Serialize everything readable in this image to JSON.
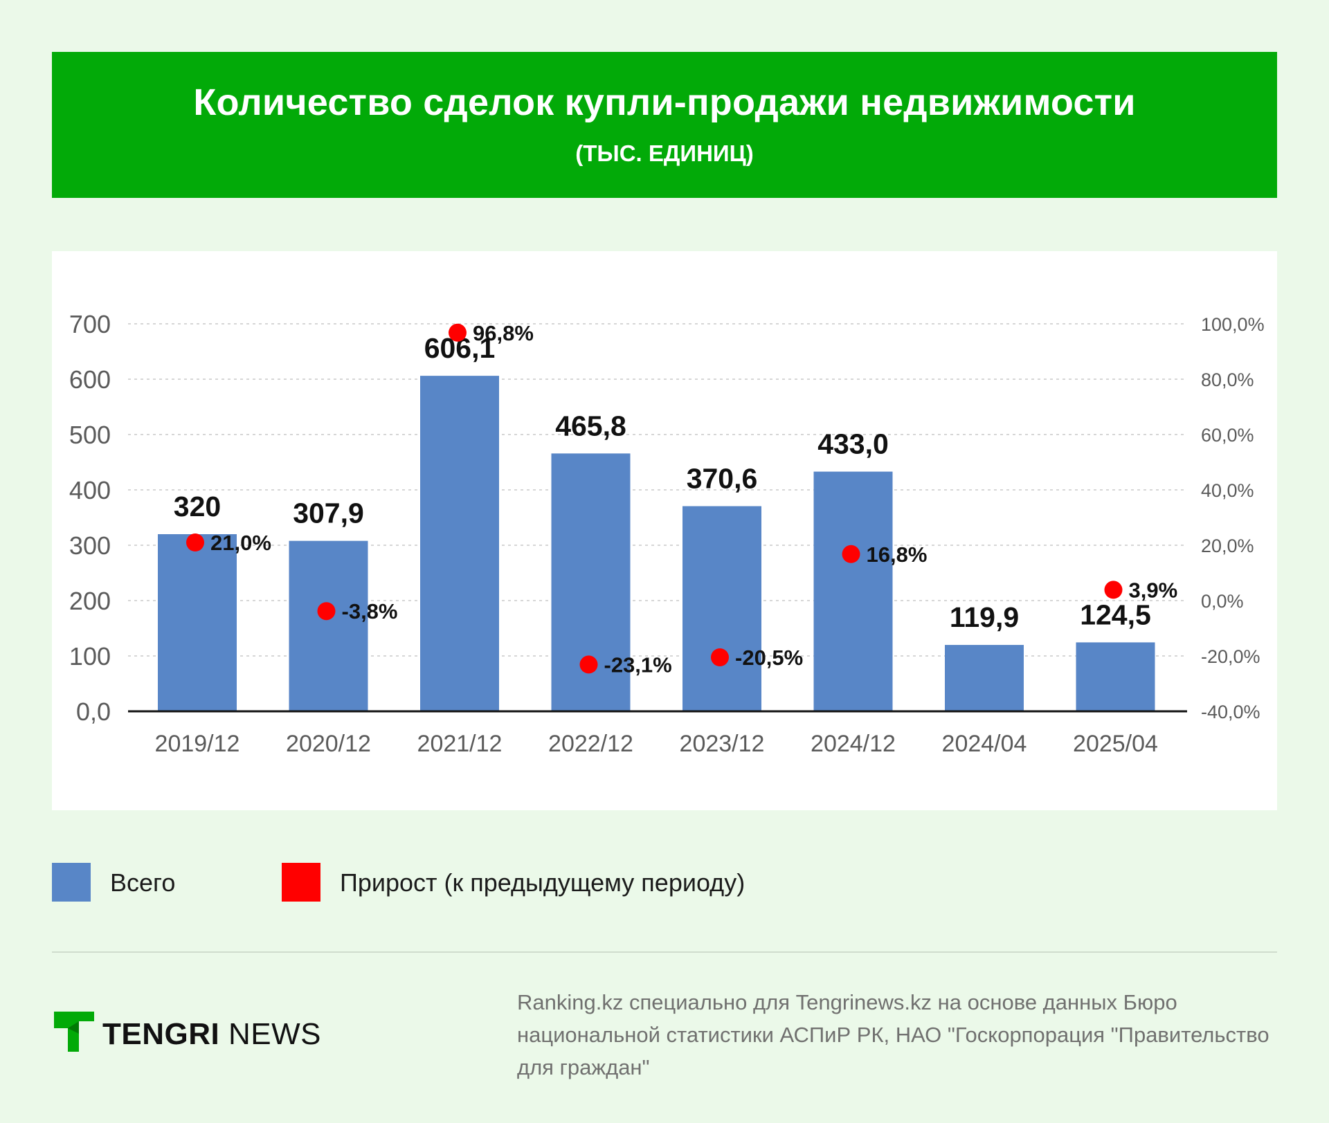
{
  "header": {
    "title": "Количество сделок купли-продажи недвижимости",
    "subtitle": "(ТЫС. ЕДИНИЦ)"
  },
  "chart_data": {
    "type": "bar",
    "categories": [
      "2019/12",
      "2020/12",
      "2021/12",
      "2022/12",
      "2023/12",
      "2024/12",
      "2024/04",
      "2025/04"
    ],
    "series": [
      {
        "name": "Всего",
        "type": "bar",
        "axis": "left",
        "values": [
          320,
          307.9,
          606.1,
          465.8,
          370.6,
          433.0,
          119.9,
          124.5
        ],
        "labels": [
          "320",
          "307,9",
          "606,1",
          "465,8",
          "370,6",
          "433,0",
          "119,9",
          "124,5"
        ],
        "color": "#5886c7"
      },
      {
        "name": "Прирост (к предыдущему периоду)",
        "type": "scatter",
        "axis": "right",
        "values": [
          21.0,
          -3.8,
          96.8,
          -23.1,
          -20.5,
          16.8,
          null,
          3.9
        ],
        "labels": [
          "21,0%",
          "-3,8%",
          "96,8%",
          "-23,1%",
          "-20,5%",
          "16,8%",
          null,
          "3,9%"
        ],
        "color": "#ff0000"
      }
    ],
    "y_left": {
      "range": [
        0,
        700
      ],
      "ticks": [
        0,
        100,
        200,
        300,
        400,
        500,
        600,
        700
      ],
      "tick_labels": [
        "0,0",
        "100",
        "200",
        "300",
        "400",
        "500",
        "600",
        "700"
      ]
    },
    "y_right": {
      "range": [
        -40,
        100
      ],
      "ticks": [
        -40,
        -20,
        0,
        20,
        40,
        60,
        80,
        100
      ],
      "tick_labels": [
        "-40,0%",
        "-20,0%",
        "0,0%",
        "20,0%",
        "40,0%",
        "60,0%",
        "80,0%",
        "100,0%"
      ]
    },
    "grid": true,
    "legend_position": "bottom-left"
  },
  "legend": {
    "items": [
      {
        "label": "Всего",
        "color": "#5886c7"
      },
      {
        "label": "Прирост (к предыдущему периоду)",
        "color": "#ff0000"
      }
    ]
  },
  "logo": {
    "brand_bold": "TENGRI",
    "brand_regular": "NEWS",
    "color": "#02aa08"
  },
  "source": {
    "text": "Ranking.kz специально для Tengrinews.kz на основе данных Бюро национальной статистики АСПиР РК, НАО \"Госкорпорация \"Правительство для граждан\""
  }
}
